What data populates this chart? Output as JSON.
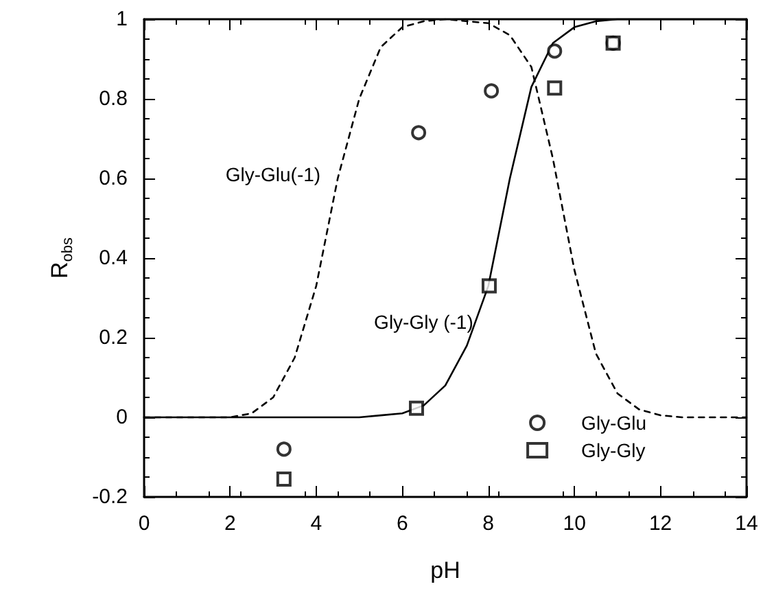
{
  "chart_data": {
    "type": "scatter",
    "xlabel": "pH",
    "ylabel": "R$_{obs}$",
    "xlim": [
      0,
      14
    ],
    "xticks": [
      0,
      2,
      4,
      6,
      8,
      10,
      12,
      14
    ],
    "ylim": [
      -0.2,
      1
    ],
    "yticks": [
      -0.2,
      0,
      0.2,
      0.4,
      0.6,
      0.8,
      1
    ],
    "grid": false,
    "legend": "bottom right",
    "series": [
      {
        "name": "Gly-Glu",
        "marker": "circle",
        "color": "#000000",
        "x": [
          3.25,
          6.38,
          8.07,
          9.54,
          10.9
        ],
        "values": [
          -0.08,
          0.715,
          0.82,
          0.92,
          0.94
        ]
      },
      {
        "name": "Gly-Gly",
        "marker": "square",
        "color": "#000000",
        "x": [
          3.25,
          6.33,
          8.02,
          9.54,
          10.9
        ],
        "values": [
          -0.155,
          0.023,
          0.33,
          0.827,
          0.94
        ]
      },
      {
        "type": "line",
        "marker": "none",
        "line_style": "solid",
        "color": "#000000",
        "x": [
          0,
          5,
          5.5,
          6,
          6.5,
          7,
          7.5,
          8,
          8.5,
          9,
          9.5,
          10,
          10.5,
          11,
          14
        ],
        "values": [
          0,
          0,
          0.005,
          0.01,
          0.03,
          0.08,
          0.18,
          0.33,
          0.6,
          0.83,
          0.94,
          0.98,
          0.995,
          1,
          1
        ]
      },
      {
        "type": "line",
        "marker": "none",
        "line_style": "dashed",
        "color": "#000000",
        "x": [
          0,
          2,
          2.5,
          3,
          3.5,
          4,
          4.5,
          5,
          5.5,
          6,
          6.5,
          7,
          8,
          8.5,
          9,
          9.5,
          10,
          10.5,
          11,
          11.5,
          12,
          12.5,
          14
        ],
        "values": [
          0,
          0,
          0.01,
          0.05,
          0.15,
          0.33,
          0.6,
          0.8,
          0.93,
          0.98,
          0.995,
          1,
          0.99,
          0.96,
          0.88,
          0.65,
          0.37,
          0.16,
          0.06,
          0.02,
          0.005,
          0,
          0
        ]
      }
    ],
    "annotations": [
      "Gly-Glu(-1)",
      "Gly-Gly (-1)"
    ]
  }
}
